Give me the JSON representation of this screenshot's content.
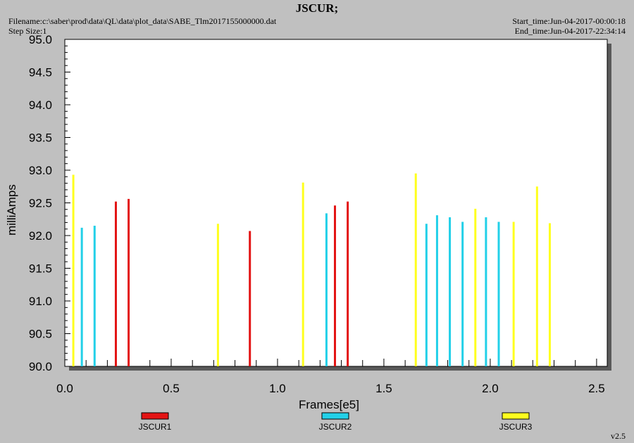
{
  "header": {
    "title": "JSCUR;",
    "filename": "Filename:c:\\saber\\prod\\data\\QL\\data\\plot_data\\SABE_Tlm2017155000000.dat",
    "step_size": "Step Size:1",
    "start_time": "Start_time:Jun-04-2017-00:00:18",
    "end_time": "End_time:Jun-04-2017-22:34:14"
  },
  "footer": {
    "version": "v2.5"
  },
  "colors": {
    "JSCUR1": "#e31414",
    "JSCUR2": "#22d0e8",
    "JSCUR3": "#ffff1e",
    "background": "#c0c0c0",
    "plot_area": "#ffffff"
  },
  "chart_data": {
    "type": "bar",
    "title": "JSCUR;",
    "xlabel": "Frames[e5]",
    "ylabel": "milliAmps",
    "xlim": [
      0.0,
      2.55
    ],
    "ylim": [
      90.0,
      95.0
    ],
    "xticks": [
      "0.0",
      "0.5",
      "1.0",
      "1.5",
      "2.0",
      "2.5"
    ],
    "yticks": [
      "90.0",
      "90.5",
      "91.0",
      "91.5",
      "92.0",
      "92.5",
      "93.0",
      "93.5",
      "94.0",
      "94.5",
      "95.0"
    ],
    "grid": false,
    "legend_position": "bottom",
    "series": [
      {
        "name": "JSCUR1",
        "x": [
          0.24,
          0.3,
          0.87,
          1.27,
          1.33
        ],
        "values": [
          92.52,
          92.56,
          92.07,
          92.46,
          92.52
        ]
      },
      {
        "name": "JSCUR2",
        "x": [
          0.08,
          0.14,
          1.23,
          1.7,
          1.75,
          1.81,
          1.87,
          1.98,
          2.04
        ],
        "values": [
          92.12,
          92.15,
          92.34,
          92.18,
          92.31,
          92.28,
          92.21,
          92.28,
          92.21
        ]
      },
      {
        "name": "JSCUR3",
        "x": [
          0.04,
          0.72,
          1.12,
          1.65,
          1.93,
          2.11,
          2.22,
          2.28
        ],
        "values": [
          92.93,
          92.18,
          92.81,
          92.95,
          92.41,
          92.21,
          92.75,
          92.19
        ]
      }
    ]
  }
}
